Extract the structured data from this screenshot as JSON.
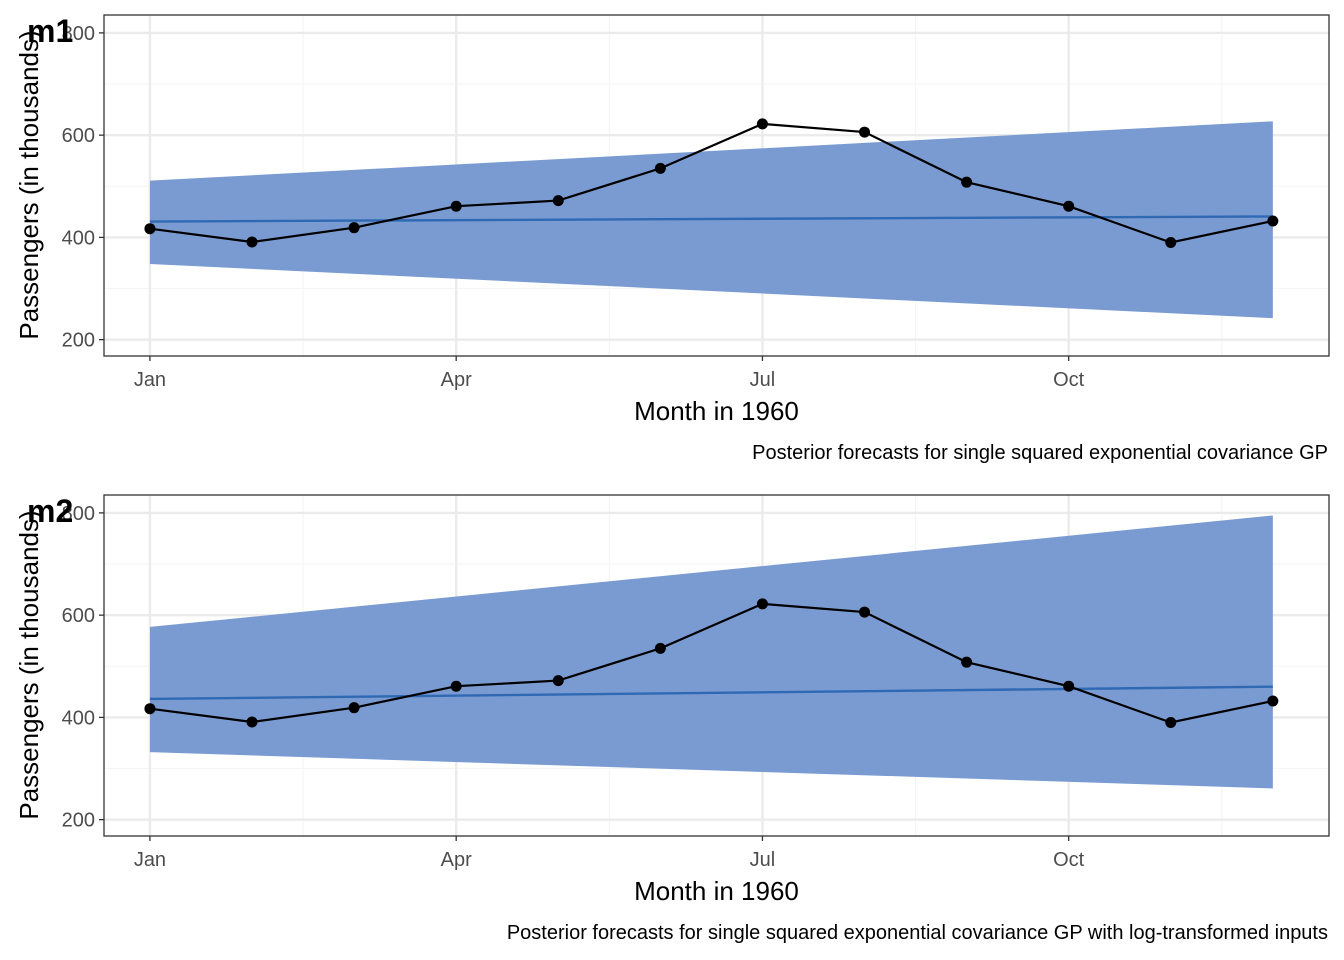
{
  "colors": {
    "band": "#7799d0",
    "mean_line": "#2f69b3",
    "observed": "#000000",
    "grid_major": "#ebebeb",
    "grid_minor": "#f5f5f5",
    "panel_border": "#333333"
  },
  "chart_data": [
    {
      "type": "line",
      "tag": "m1",
      "xlabel": "Month in 1960",
      "ylabel": "Passengers (in thousands)",
      "caption": "Posterior forecasts for single squared exponential covariance GP",
      "x_ticks": [
        {
          "label": "Jan",
          "month": 1
        },
        {
          "label": "Apr",
          "month": 4
        },
        {
          "label": "Jul",
          "month": 7
        },
        {
          "label": "Oct",
          "month": 10
        }
      ],
      "y_ticks": [
        200,
        400,
        600,
        800
      ],
      "ylim": [
        168,
        835
      ],
      "xlim": [
        0.55,
        12.55
      ],
      "grid": true,
      "months": [
        1,
        2,
        3,
        4,
        5,
        6,
        7,
        8,
        9,
        10,
        11,
        12
      ],
      "observed": [
        417,
        391,
        419,
        461,
        472,
        535,
        622,
        606,
        508,
        461,
        390,
        432
      ],
      "band_start": {
        "month": 1,
        "lower": 348,
        "upper": 511,
        "mean": 431
      },
      "band_end": {
        "month": 12,
        "lower": 242,
        "upper": 627,
        "mean": 441
      }
    },
    {
      "type": "line",
      "tag": "m2",
      "xlabel": "Month in 1960",
      "ylabel": "Passengers (in thousands)",
      "caption": "Posterior forecasts for single squared exponential covariance GP with log-transformed inputs",
      "x_ticks": [
        {
          "label": "Jan",
          "month": 1
        },
        {
          "label": "Apr",
          "month": 4
        },
        {
          "label": "Jul",
          "month": 7
        },
        {
          "label": "Oct",
          "month": 10
        }
      ],
      "y_ticks": [
        200,
        400,
        600,
        800
      ],
      "ylim": [
        168,
        835
      ],
      "xlim": [
        0.55,
        12.55
      ],
      "grid": true,
      "months": [
        1,
        2,
        3,
        4,
        5,
        6,
        7,
        8,
        9,
        10,
        11,
        12
      ],
      "observed": [
        417,
        391,
        419,
        461,
        472,
        535,
        622,
        606,
        508,
        461,
        390,
        432
      ],
      "band_start": {
        "month": 1,
        "lower": 332,
        "upper": 577,
        "mean": 436
      },
      "band_end": {
        "month": 12,
        "lower": 261,
        "upper": 795,
        "mean": 460
      }
    }
  ]
}
